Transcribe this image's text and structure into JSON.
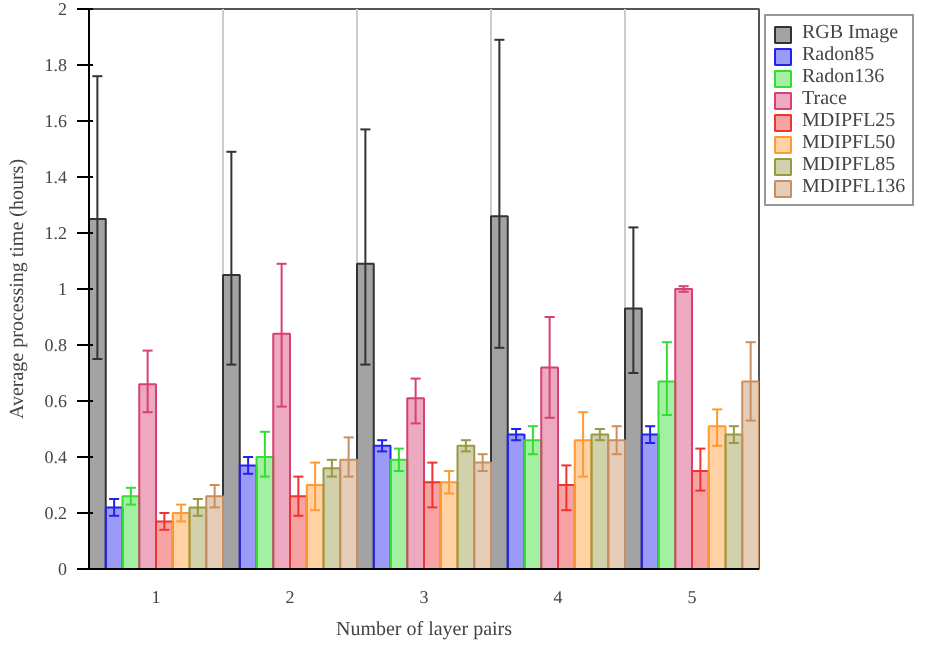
{
  "chart_data": {
    "type": "bar",
    "xlabel": "Number of layer pairs",
    "ylabel": "Average processing time (hours)",
    "categories": [
      "1",
      "2",
      "3",
      "4",
      "5"
    ],
    "ylim": [
      0,
      2
    ],
    "yticks": [
      0,
      {
        "value": 0.2,
        "label": "0.2"
      },
      {
        "value": 0.4,
        "label": "0.4"
      },
      {
        "value": 0.6,
        "label": "0.6"
      },
      {
        "value": 0.8,
        "label": "0.8"
      },
      1,
      {
        "value": 1.2,
        "label": "1.2"
      },
      {
        "value": 1.4,
        "label": "1.4"
      },
      {
        "value": 1.6,
        "label": "1.6"
      },
      {
        "value": 1.8,
        "label": "1.8"
      },
      2
    ],
    "grid": "x",
    "legend": "top right",
    "series": [
      {
        "name": "RGB Image",
        "color": "#333333",
        "values": [
          1.25,
          1.05,
          1.09,
          1.26,
          0.93
        ],
        "errors": [
          [
            0.75,
            1.76
          ],
          [
            0.73,
            1.49
          ],
          [
            0.73,
            1.57
          ],
          [
            0.79,
            1.89
          ],
          [
            0.7,
            1.22
          ]
        ]
      },
      {
        "name": "Radon85",
        "color": "#2222ee",
        "values": [
          0.22,
          0.37,
          0.44,
          0.48,
          0.48
        ],
        "errors": [
          [
            0.19,
            0.25
          ],
          [
            0.34,
            0.4
          ],
          [
            0.42,
            0.46
          ],
          [
            0.46,
            0.5
          ],
          [
            0.45,
            0.51
          ]
        ]
      },
      {
        "name": "Radon136",
        "color": "#33dd33",
        "values": [
          0.26,
          0.4,
          0.39,
          0.46,
          0.67
        ],
        "errors": [
          [
            0.23,
            0.29
          ],
          [
            0.33,
            0.49
          ],
          [
            0.35,
            0.43
          ],
          [
            0.41,
            0.51
          ],
          [
            0.55,
            0.81
          ]
        ]
      },
      {
        "name": "Trace",
        "color": "#d84070",
        "values": [
          0.66,
          0.84,
          0.61,
          0.72,
          1.0
        ],
        "errors": [
          [
            0.56,
            0.78
          ],
          [
            0.58,
            1.09
          ],
          [
            0.52,
            0.68
          ],
          [
            0.54,
            0.9
          ],
          [
            0.99,
            1.01
          ]
        ]
      },
      {
        "name": "MDIPFL25",
        "color": "#ee3333",
        "values": [
          0.17,
          0.26,
          0.31,
          0.3,
          0.35
        ],
        "errors": [
          [
            0.14,
            0.2
          ],
          [
            0.19,
            0.33
          ],
          [
            0.22,
            0.38
          ],
          [
            0.21,
            0.37
          ],
          [
            0.28,
            0.43
          ]
        ]
      },
      {
        "name": "MDIPFL50",
        "color": "#ff9933",
        "values": [
          0.2,
          0.3,
          0.31,
          0.46,
          0.51
        ],
        "errors": [
          [
            0.17,
            0.23
          ],
          [
            0.21,
            0.38
          ],
          [
            0.27,
            0.35
          ],
          [
            0.33,
            0.56
          ],
          [
            0.44,
            0.57
          ]
        ]
      },
      {
        "name": "MDIPFL85",
        "color": "#999944",
        "values": [
          0.22,
          0.36,
          0.44,
          0.48,
          0.48
        ],
        "errors": [
          [
            0.19,
            0.25
          ],
          [
            0.33,
            0.39
          ],
          [
            0.42,
            0.46
          ],
          [
            0.46,
            0.5
          ],
          [
            0.45,
            0.51
          ]
        ]
      },
      {
        "name": "MDIPFL136",
        "color": "#c89060",
        "values": [
          0.26,
          0.39,
          0.38,
          0.46,
          0.67
        ],
        "errors": [
          [
            0.22,
            0.3
          ],
          [
            0.33,
            0.47
          ],
          [
            0.35,
            0.41
          ],
          [
            0.41,
            0.51
          ],
          [
            0.53,
            0.81
          ]
        ]
      }
    ]
  }
}
